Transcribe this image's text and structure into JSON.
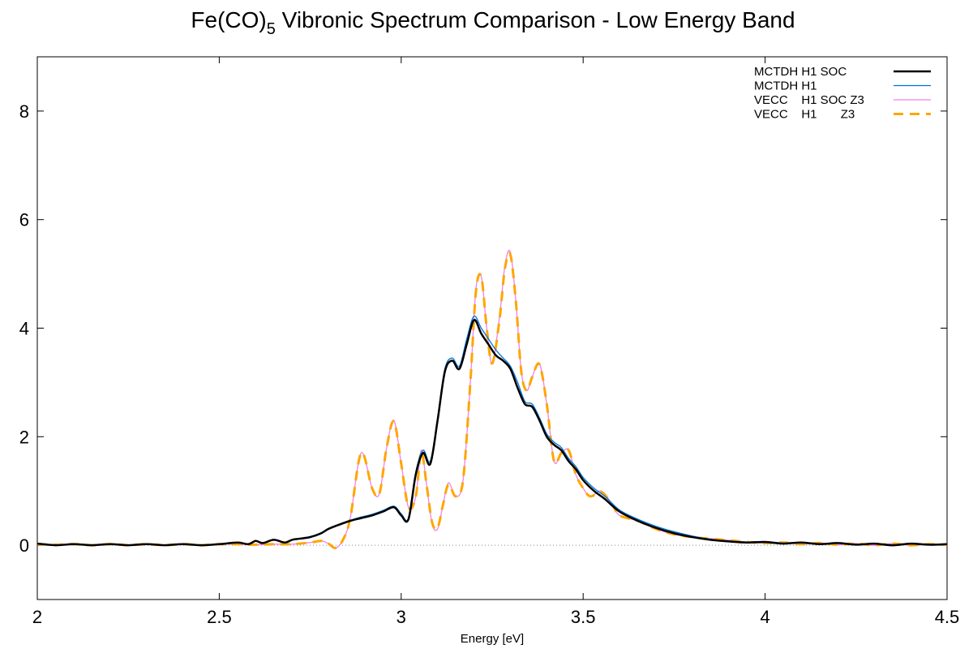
{
  "chart_data": {
    "type": "line",
    "title": "Fe(CO)",
    "title_subscript": "5",
    "title_suffix": " Vibronic Spectrum Comparison - Low Energy Band",
    "xlabel": "Energy [eV]",
    "ylabel": "",
    "xlim": [
      2.0,
      4.5
    ],
    "ylim": [
      -1.0,
      9.0
    ],
    "x_ticks": [
      2.0,
      2.5,
      3.0,
      3.5,
      4.0,
      4.5
    ],
    "x_tick_labels": [
      "2",
      "2.5",
      "3",
      "3.5",
      "4",
      "4.5"
    ],
    "y_ticks": [
      0,
      2,
      4,
      6,
      8
    ],
    "y_tick_labels": [
      "0",
      "2",
      "4",
      "6",
      "8"
    ],
    "grid": false,
    "zero_line": true,
    "legend_position": "top-right",
    "series": [
      {
        "name": "MCTDH H1 SOC",
        "color": "#000000",
        "dash": "solid",
        "x": [
          2.0,
          2.05,
          2.1,
          2.15,
          2.2,
          2.25,
          2.3,
          2.35,
          2.4,
          2.45,
          2.5,
          2.55,
          2.58,
          2.6,
          2.62,
          2.65,
          2.68,
          2.7,
          2.72,
          2.75,
          2.78,
          2.8,
          2.83,
          2.86,
          2.89,
          2.92,
          2.95,
          2.98,
          3.0,
          3.02,
          3.04,
          3.06,
          3.08,
          3.1,
          3.12,
          3.14,
          3.16,
          3.18,
          3.2,
          3.22,
          3.24,
          3.26,
          3.28,
          3.3,
          3.32,
          3.34,
          3.36,
          3.38,
          3.4,
          3.42,
          3.44,
          3.46,
          3.48,
          3.5,
          3.53,
          3.56,
          3.6,
          3.65,
          3.7,
          3.75,
          3.8,
          3.85,
          3.9,
          3.95,
          4.0,
          4.05,
          4.1,
          4.15,
          4.2,
          4.25,
          4.3,
          4.35,
          4.4,
          4.45,
          4.5
        ],
        "values": [
          0.03,
          0.0,
          0.02,
          0.0,
          0.02,
          0.0,
          0.02,
          0.0,
          0.02,
          0.0,
          0.02,
          0.05,
          0.02,
          0.08,
          0.04,
          0.1,
          0.05,
          0.1,
          0.12,
          0.15,
          0.22,
          0.3,
          0.38,
          0.45,
          0.5,
          0.55,
          0.62,
          0.7,
          0.55,
          0.48,
          1.3,
          1.7,
          1.5,
          2.3,
          3.2,
          3.4,
          3.25,
          3.7,
          4.15,
          3.9,
          3.7,
          3.5,
          3.4,
          3.25,
          2.9,
          2.6,
          2.55,
          2.3,
          2.0,
          1.85,
          1.75,
          1.55,
          1.4,
          1.2,
          1.0,
          0.85,
          0.62,
          0.45,
          0.32,
          0.22,
          0.15,
          0.1,
          0.07,
          0.05,
          0.06,
          0.03,
          0.05,
          0.02,
          0.04,
          0.01,
          0.03,
          0.0,
          0.03,
          0.01,
          0.02
        ]
      },
      {
        "name": "MCTDH H1",
        "color": "#0072d6",
        "dash": "solid",
        "x": [
          2.0,
          2.05,
          2.1,
          2.15,
          2.2,
          2.25,
          2.3,
          2.35,
          2.4,
          2.45,
          2.5,
          2.55,
          2.58,
          2.6,
          2.62,
          2.65,
          2.68,
          2.7,
          2.72,
          2.75,
          2.78,
          2.8,
          2.83,
          2.86,
          2.89,
          2.92,
          2.95,
          2.98,
          3.0,
          3.02,
          3.04,
          3.06,
          3.08,
          3.1,
          3.12,
          3.14,
          3.16,
          3.18,
          3.2,
          3.22,
          3.24,
          3.26,
          3.28,
          3.3,
          3.32,
          3.34,
          3.36,
          3.38,
          3.4,
          3.42,
          3.44,
          3.46,
          3.48,
          3.5,
          3.53,
          3.56,
          3.6,
          3.65,
          3.7,
          3.75,
          3.8,
          3.85,
          3.9,
          3.95,
          4.0,
          4.05,
          4.1,
          4.15,
          4.2,
          4.25,
          4.3,
          4.35,
          4.4,
          4.45,
          4.5
        ],
        "values": [
          0.03,
          0.0,
          0.02,
          0.0,
          0.02,
          0.0,
          0.02,
          0.0,
          0.02,
          0.0,
          0.02,
          0.05,
          0.02,
          0.08,
          0.04,
          0.1,
          0.05,
          0.1,
          0.12,
          0.16,
          0.23,
          0.31,
          0.39,
          0.46,
          0.52,
          0.57,
          0.64,
          0.72,
          0.58,
          0.5,
          1.35,
          1.75,
          1.55,
          2.35,
          3.25,
          3.45,
          3.3,
          3.8,
          4.22,
          4.0,
          3.8,
          3.6,
          3.45,
          3.3,
          3.0,
          2.65,
          2.6,
          2.35,
          2.05,
          1.9,
          1.8,
          1.6,
          1.45,
          1.25,
          1.05,
          0.9,
          0.65,
          0.48,
          0.35,
          0.25,
          0.17,
          0.11,
          0.08,
          0.06,
          0.07,
          0.04,
          0.05,
          0.02,
          0.04,
          0.01,
          0.03,
          0.0,
          0.03,
          0.01,
          0.02
        ]
      },
      {
        "name": "VECC    H1 SOC Z3",
        "color": "#ee82ee",
        "dash": "solid",
        "x": [
          2.0,
          2.05,
          2.1,
          2.15,
          2.2,
          2.25,
          2.3,
          2.35,
          2.4,
          2.45,
          2.5,
          2.55,
          2.6,
          2.65,
          2.7,
          2.75,
          2.78,
          2.8,
          2.82,
          2.84,
          2.86,
          2.89,
          2.92,
          2.94,
          2.96,
          2.98,
          3.0,
          3.02,
          3.04,
          3.055,
          3.07,
          3.085,
          3.1,
          3.115,
          3.13,
          3.15,
          3.17,
          3.19,
          3.205,
          3.22,
          3.235,
          3.25,
          3.27,
          3.285,
          3.3,
          3.315,
          3.33,
          3.345,
          3.36,
          3.38,
          3.4,
          3.42,
          3.44,
          3.46,
          3.48,
          3.5,
          3.52,
          3.55,
          3.58,
          3.6,
          3.65,
          3.7,
          3.75,
          3.8,
          3.85,
          3.9,
          3.95,
          4.0,
          4.05,
          4.1,
          4.15,
          4.2,
          4.25,
          4.3,
          4.35,
          4.4,
          4.45,
          4.5
        ],
        "values": [
          0.02,
          0.01,
          0.02,
          0.0,
          0.02,
          0.0,
          0.02,
          0.0,
          0.02,
          0.0,
          0.02,
          0.02,
          0.01,
          0.02,
          0.02,
          0.05,
          0.08,
          0.03,
          -0.05,
          0.1,
          0.5,
          1.7,
          1.05,
          0.95,
          1.8,
          2.3,
          1.5,
          0.7,
          0.9,
          1.75,
          1.1,
          0.4,
          0.3,
          0.75,
          1.15,
          0.9,
          1.2,
          3.0,
          4.7,
          4.95,
          4.0,
          3.35,
          4.2,
          5.15,
          5.4,
          4.5,
          3.2,
          2.85,
          3.1,
          3.35,
          2.6,
          1.55,
          1.7,
          1.75,
          1.3,
          1.05,
          0.9,
          1.0,
          0.75,
          0.55,
          0.45,
          0.3,
          0.2,
          0.15,
          0.12,
          0.09,
          0.06,
          0.04,
          0.05,
          0.02,
          0.04,
          0.01,
          0.03,
          0.0,
          0.03,
          0.0,
          0.02,
          0.01
        ]
      },
      {
        "name": "VECC    H1       Z3",
        "color": "#ffa500",
        "dash": "dashed",
        "x": [
          2.0,
          2.05,
          2.1,
          2.15,
          2.2,
          2.25,
          2.3,
          2.35,
          2.4,
          2.45,
          2.5,
          2.55,
          2.6,
          2.65,
          2.7,
          2.75,
          2.78,
          2.8,
          2.82,
          2.84,
          2.86,
          2.89,
          2.92,
          2.94,
          2.96,
          2.98,
          3.0,
          3.02,
          3.04,
          3.055,
          3.07,
          3.085,
          3.1,
          3.115,
          3.13,
          3.15,
          3.17,
          3.19,
          3.205,
          3.22,
          3.235,
          3.25,
          3.27,
          3.285,
          3.3,
          3.315,
          3.33,
          3.345,
          3.36,
          3.38,
          3.4,
          3.42,
          3.44,
          3.46,
          3.48,
          3.5,
          3.52,
          3.55,
          3.58,
          3.6,
          3.65,
          3.7,
          3.75,
          3.8,
          3.85,
          3.9,
          3.95,
          4.0,
          4.05,
          4.1,
          4.15,
          4.2,
          4.25,
          4.3,
          4.35,
          4.4,
          4.45,
          4.5
        ],
        "values": [
          0.02,
          0.01,
          0.02,
          0.0,
          0.02,
          0.0,
          0.02,
          0.0,
          0.02,
          0.0,
          0.02,
          0.02,
          0.01,
          0.02,
          0.02,
          0.05,
          0.08,
          0.03,
          -0.05,
          0.1,
          0.5,
          1.7,
          1.05,
          0.95,
          1.8,
          2.28,
          1.5,
          0.7,
          0.9,
          1.72,
          1.1,
          0.42,
          0.32,
          0.75,
          1.12,
          0.9,
          1.2,
          3.0,
          4.65,
          4.95,
          4.0,
          3.35,
          4.15,
          5.1,
          5.35,
          4.5,
          3.2,
          2.85,
          3.1,
          3.33,
          2.6,
          1.55,
          1.7,
          1.75,
          1.3,
          1.05,
          0.9,
          0.98,
          0.75,
          0.55,
          0.45,
          0.3,
          0.2,
          0.15,
          0.12,
          0.09,
          0.06,
          0.04,
          0.05,
          0.02,
          0.04,
          0.01,
          0.03,
          0.0,
          0.03,
          0.0,
          0.02,
          0.01
        ]
      }
    ]
  }
}
